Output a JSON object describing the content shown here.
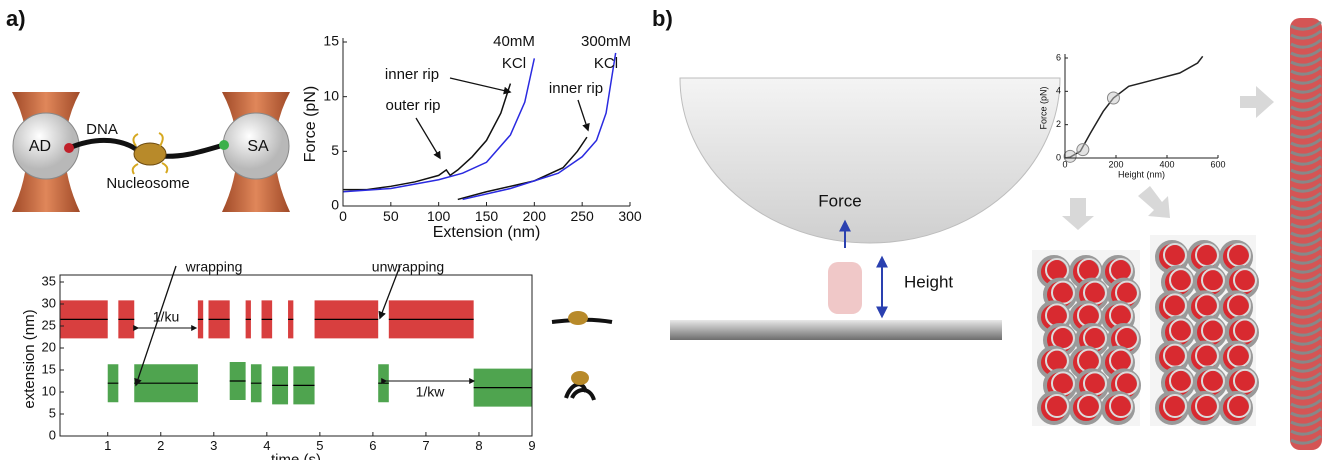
{
  "panels": {
    "a": "a)",
    "b": "b)"
  },
  "diagram_a": {
    "left_bead": "AD",
    "right_bead": "SA",
    "dna": "DNA",
    "nucleosome": "Nucleosome"
  },
  "diagram_b": {
    "force": "Force",
    "height": "Height"
  },
  "chart_data": [
    {
      "type": "line",
      "xlabel": "Extension (nm)",
      "ylabel": "Force (pN)",
      "xlim": [
        0,
        300
      ],
      "ylim": [
        0,
        15
      ],
      "xticks": [
        0,
        50,
        100,
        150,
        200,
        250,
        300
      ],
      "yticks": [
        0,
        5,
        10,
        15
      ],
      "annotations": [
        "40mM",
        "KCl",
        "300mM",
        "KCl",
        "inner rip",
        "outer rip",
        "inner rip"
      ],
      "series": [
        {
          "color": "#111111",
          "x": [
            0,
            25,
            50,
            75,
            100,
            108,
            112,
            120,
            135,
            150,
            165,
            175
          ],
          "values": [
            1.5,
            1.5,
            1.8,
            2.2,
            2.8,
            3.3,
            2.8,
            3.3,
            4.5,
            6,
            8.5,
            11.2
          ]
        },
        {
          "color": "#2a2ae0",
          "x": [
            0,
            50,
            100,
            125,
            150,
            175,
            190,
            200
          ],
          "values": [
            1.3,
            1.6,
            2.4,
            3,
            4,
            6.5,
            9.5,
            13.5
          ]
        },
        {
          "color": "#111111",
          "x": [
            120,
            150,
            200,
            230,
            245,
            255
          ],
          "values": [
            0.6,
            1.3,
            2.3,
            3.5,
            5,
            6.3
          ]
        },
        {
          "color": "#2a2ae0",
          "x": [
            125,
            175,
            225,
            250,
            265,
            275,
            285
          ],
          "values": [
            0.6,
            1.6,
            3,
            4.5,
            6,
            8.5,
            14
          ]
        }
      ]
    },
    {
      "type": "line",
      "xlabel": "time (s)",
      "ylabel": "extension (nm)",
      "xlim": [
        0.1,
        9
      ],
      "ylim": [
        0,
        35
      ],
      "xticks": [
        1,
        2,
        3,
        4,
        5,
        6,
        7,
        8,
        9
      ],
      "yticks": [
        0,
        5,
        10,
        15,
        20,
        25,
        30,
        35
      ],
      "level_color": "#000000",
      "annotations": [
        "wrapping",
        "unwrapping",
        "1/ku",
        "1/kw"
      ],
      "series": [
        {
          "color": "#d42a2a",
          "x": [
            0.1,
            1.0,
            1.1,
            1.2,
            1.5,
            2.1,
            2.7,
            2.8,
            2.85,
            2.9,
            3.3,
            3.45,
            3.6,
            3.7,
            3.8,
            3.9,
            4.1,
            4.25,
            4.4,
            4.5,
            4.7,
            4.9,
            6.1,
            6.2,
            6.3,
            7.9
          ],
          "values": [
            26.5,
            26.5,
            null,
            26.5,
            26.5,
            null,
            26.5,
            26.5,
            null,
            26.5,
            26.5,
            null,
            26.5,
            26.5,
            null,
            26.5,
            26.5,
            null,
            26.5,
            26.5,
            null,
            26.5,
            26.5,
            null,
            26.5,
            26.5
          ]
        },
        {
          "color": "#3c9a3c",
          "x": [
            1.0,
            1.2,
            1.35,
            1.5,
            2.7,
            3.0,
            3.3,
            3.6,
            3.65,
            3.7,
            3.9,
            4.0,
            4.1,
            4.4,
            4.45,
            4.5,
            4.9,
            5.5,
            6.1,
            6.3,
            7.1,
            7.9,
            9.0
          ],
          "values": [
            12,
            12,
            null,
            12,
            12,
            null,
            12.5,
            12.5,
            null,
            12,
            12,
            null,
            11.5,
            11.5,
            null,
            11.5,
            11.5,
            null,
            12,
            12,
            null,
            11,
            11
          ]
        }
      ]
    },
    {
      "type": "line",
      "xlabel": "Height (nm)",
      "ylabel": "Force (pN)",
      "xlim": [
        0,
        600
      ],
      "ylim": [
        0,
        6
      ],
      "xticks": [
        0,
        200,
        400,
        600
      ],
      "yticks": [
        0,
        2,
        4,
        6
      ],
      "series": [
        {
          "color": "#222222",
          "x": [
            0,
            20,
            60,
            100,
            150,
            190,
            250,
            350,
            450,
            520,
            540
          ],
          "values": [
            0,
            0.05,
            0.4,
            1.5,
            2.8,
            3.6,
            4.3,
            4.7,
            5.1,
            5.7,
            6.1
          ]
        }
      ],
      "markers": {
        "color": "#888888",
        "x": [
          20,
          70,
          190
        ],
        "values": [
          0.1,
          0.5,
          3.6
        ]
      }
    }
  ]
}
